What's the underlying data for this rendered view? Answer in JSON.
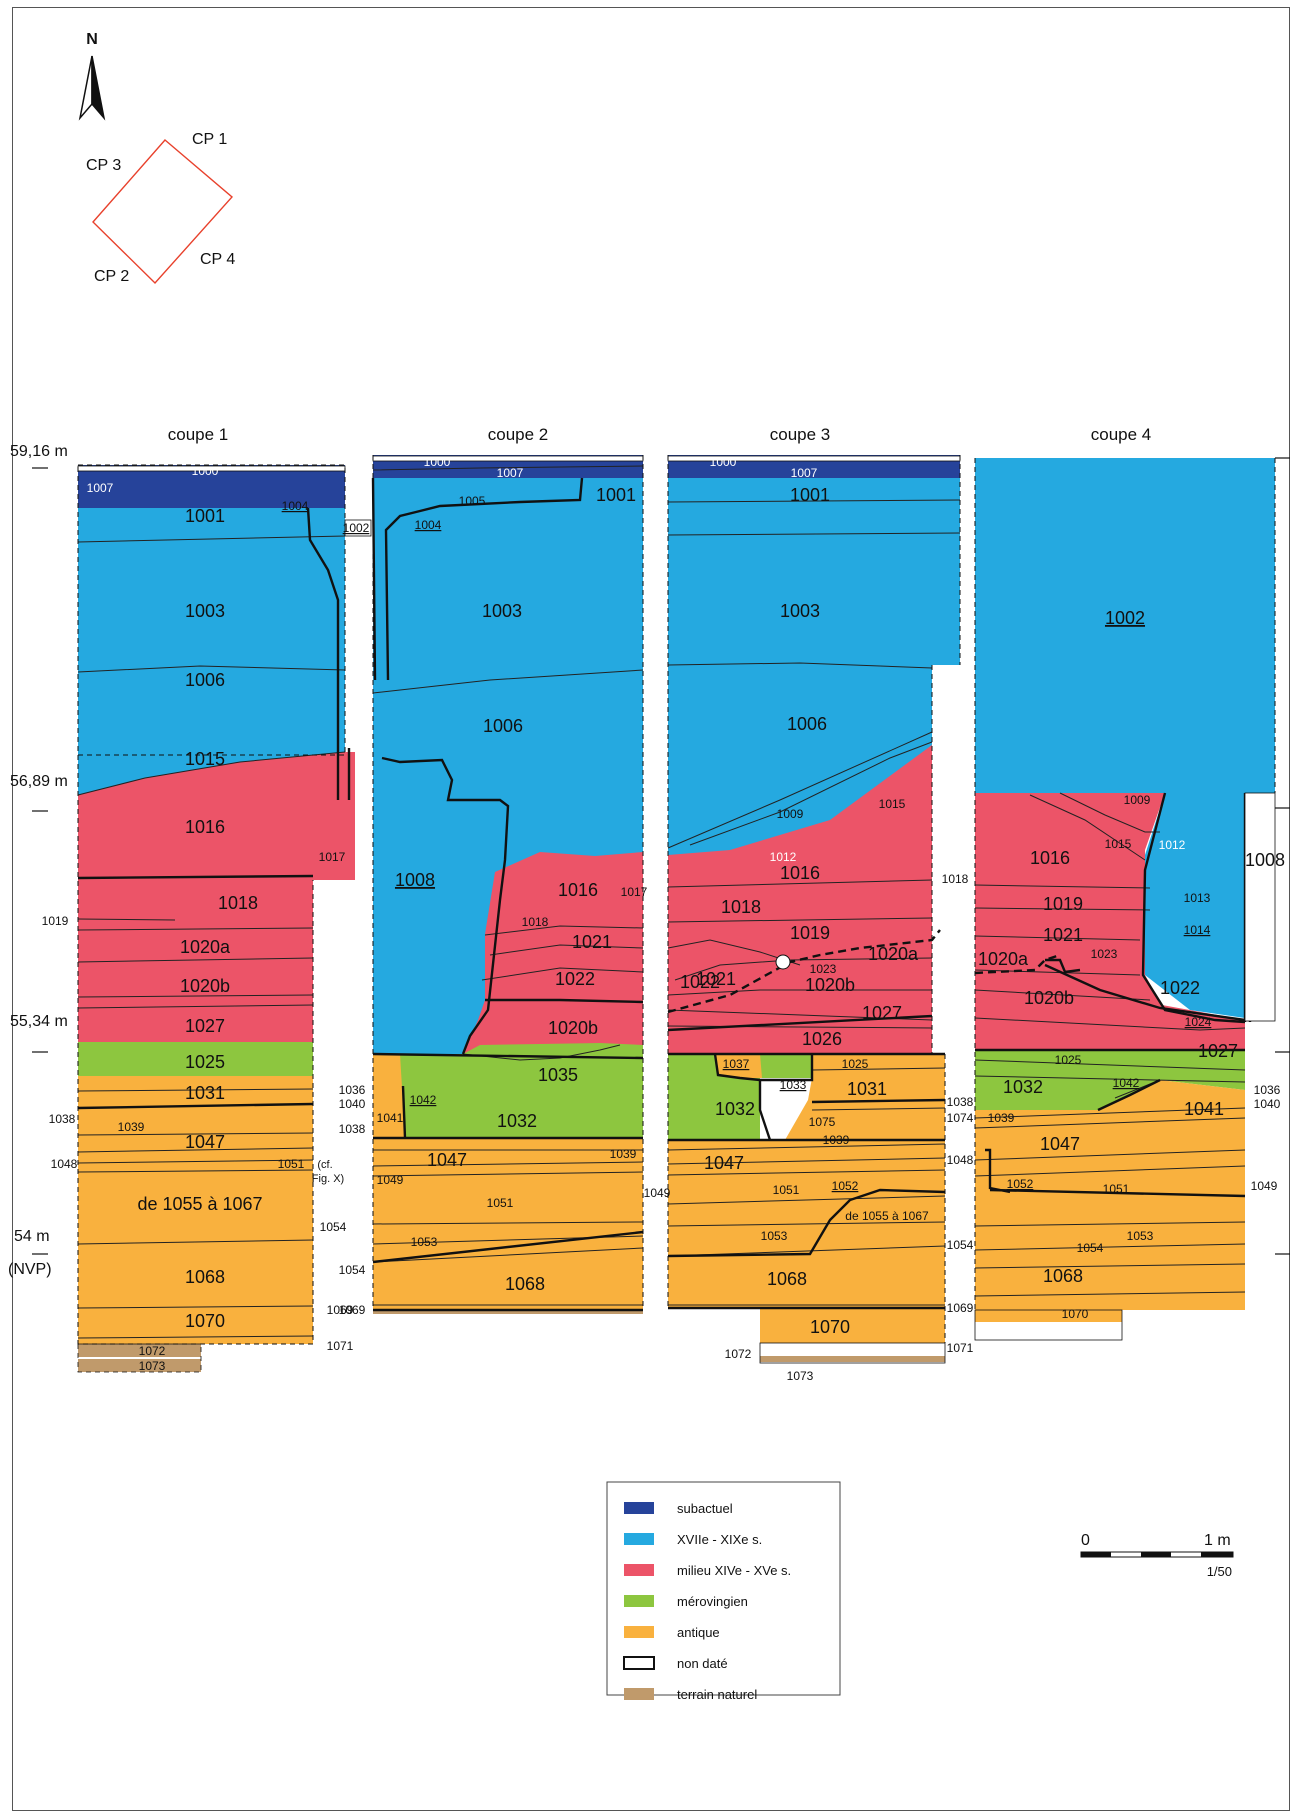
{
  "colors": {
    "subactuel": "#26439a",
    "xvii_xix": "#25a9e0",
    "xiv_xv": "#ec5468",
    "merovingien": "#8dc63f",
    "antique": "#f9b13e",
    "non_date": "#ffffff",
    "terrain_naturel": "#c09a6b",
    "orientation": "#e8412c"
  },
  "compass": {
    "north": "N"
  },
  "orientation": {
    "cp1": "CP 1",
    "cp2": "CP 2",
    "cp3": "CP 3",
    "cp4": "CP 4"
  },
  "elevations": {
    "e1": "59,16 m",
    "e2": "56,89 m",
    "e3": "55,34 m",
    "e4": "54 m",
    "e4_note": "(NVP)"
  },
  "coupes": {
    "c1": {
      "title": "coupe 1",
      "labels": [
        "1000",
        "1007",
        "1004",
        "1002",
        "1001",
        "1003",
        "1006",
        "1015",
        "1016",
        "1017",
        "1018",
        "1019",
        "1020a",
        "1020b",
        "1027",
        "1025",
        "1031",
        "1038",
        "1039",
        "1047",
        "1051",
        "1048",
        "(cf.",
        "Fig. X)",
        "de 1055 à 1067",
        "1054",
        "1068",
        "1069",
        "1070",
        "1071",
        "1072",
        "1073"
      ]
    },
    "c2": {
      "title": "coupe 2",
      "labels": [
        "1000",
        "1007",
        "1005",
        "1001",
        "1004",
        "1003",
        "1006",
        "1008",
        "1016",
        "1017",
        "1018",
        "1021",
        "1022",
        "1020b",
        "1035",
        "1036",
        "1040",
        "1042",
        "1041",
        "1038",
        "1032",
        "1047",
        "1039",
        "1049",
        "1051",
        "1053",
        "1054",
        "1068",
        "1069"
      ]
    },
    "c3": {
      "title": "coupe 3",
      "labels": [
        "1000",
        "1007",
        "1001",
        "1003",
        "1006",
        "1009",
        "1015",
        "1012",
        "1016",
        "1018",
        "1019",
        "1021",
        "1023",
        "1020a",
        "1022",
        "1020b",
        "1027",
        "1026",
        "1037",
        "1025",
        "1033",
        "1031",
        "1032",
        "1075",
        "1038",
        "1074",
        "1039",
        "1047",
        "1048",
        "1051",
        "1052",
        "de 1055 à 1067",
        "1049",
        "1053",
        "1054",
        "1068",
        "1069",
        "1070",
        "1071",
        "1072",
        "1073"
      ]
    },
    "c4": {
      "title": "coupe 4",
      "labels": [
        "1002",
        "1009",
        "1015",
        "1012",
        "1008",
        "1016",
        "1013",
        "1014",
        "1018",
        "1019",
        "1021",
        "1020a",
        "1023",
        "1022",
        "1020b",
        "1024",
        "1027",
        "1025",
        "1032",
        "1042",
        "1036",
        "1040",
        "1041",
        "1039",
        "1047",
        "1049",
        "1052",
        "1051",
        "1053",
        "1054",
        "1068",
        "1070"
      ]
    }
  },
  "legend": [
    {
      "label": "subactuel",
      "color": "#26439a"
    },
    {
      "label": "XVIIe - XIXe s.",
      "color": "#25a9e0"
    },
    {
      "label": "milieu XIVe - XVe s.",
      "color": "#ec5468"
    },
    {
      "label": "mérovingien",
      "color": "#8dc63f"
    },
    {
      "label": "antique",
      "color": "#f9b13e"
    },
    {
      "label": "non daté",
      "color": "#ffffff"
    },
    {
      "label": "terrain naturel",
      "color": "#c09a6b"
    }
  ],
  "scale": {
    "zero": "0",
    "max": "1 m",
    "ratio": "1/50"
  }
}
